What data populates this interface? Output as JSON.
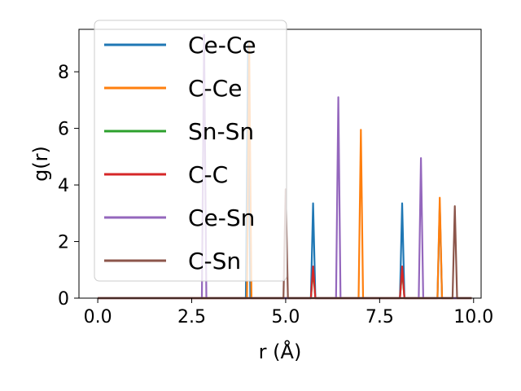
{
  "chart_data": {
    "type": "line",
    "xlabel": "r (Å)",
    "ylabel": "g(r)",
    "xlim": [
      -0.5,
      10.2
    ],
    "ylim": [
      0,
      9.5
    ],
    "xticks": [
      0.0,
      2.5,
      5.0,
      7.5,
      10.0
    ],
    "xtick_labels": [
      "0.0",
      "2.5",
      "5.0",
      "7.5",
      "10.0"
    ],
    "yticks": [
      0,
      2,
      4,
      6,
      8
    ],
    "ytick_labels": [
      "0",
      "2",
      "4",
      "6",
      "8"
    ],
    "grid": false,
    "legend_position": "upper-left",
    "peak_half_width": 0.06,
    "series": [
      {
        "name": "Ce-Ce",
        "color": "#1f77b4",
        "peaks": [
          [
            4.0,
            9.0
          ],
          [
            5.73,
            3.35
          ],
          [
            8.1,
            3.35
          ],
          [
            9.1,
            3.3
          ]
        ]
      },
      {
        "name": "C-Ce",
        "color": "#ff7f0e",
        "peaks": [
          [
            4.03,
            9.0
          ],
          [
            7.0,
            5.95
          ],
          [
            9.1,
            3.55
          ]
        ]
      },
      {
        "name": "Sn-Sn",
        "color": "#2ca02c",
        "peaks": [
          [
            5.73,
            1.0
          ],
          [
            8.1,
            1.0
          ]
        ]
      },
      {
        "name": "C-C",
        "color": "#d62728",
        "peaks": [
          [
            5.73,
            1.12
          ],
          [
            8.1,
            1.12
          ]
        ]
      },
      {
        "name": "Ce-Sn",
        "color": "#9467bd",
        "peaks": [
          [
            2.83,
            9.3
          ],
          [
            6.4,
            7.1
          ],
          [
            8.6,
            4.95
          ]
        ]
      },
      {
        "name": "C-Sn",
        "color": "#8c564b",
        "peaks": [
          [
            5.0,
            3.85
          ],
          [
            9.5,
            3.25
          ]
        ]
      }
    ],
    "x_range": [
      0.0,
      9.95
    ]
  }
}
